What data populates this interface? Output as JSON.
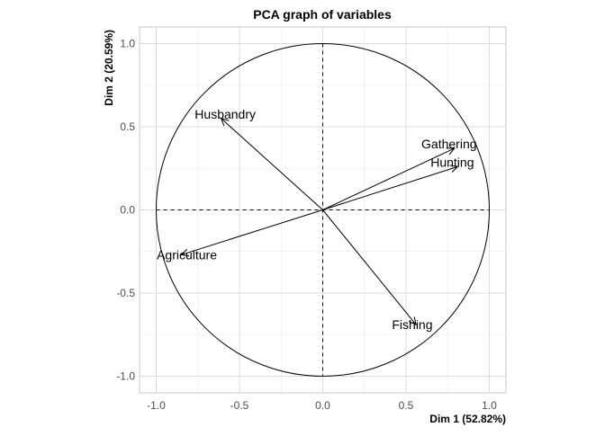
{
  "chart_data": {
    "type": "scatter",
    "title": "PCA graph of variables",
    "xlabel": "Dim 1 (52.82%)",
    "ylabel": "Dim 2 (20.59%)",
    "xlim": [
      -1.1,
      1.1
    ],
    "ylim": [
      -1.1,
      1.1
    ],
    "xticks": [
      -1.0,
      -0.5,
      0.0,
      0.5,
      1.0
    ],
    "yticks": [
      -1.0,
      -0.5,
      0.0,
      0.5,
      1.0
    ],
    "xtick_labels": [
      "-1.0",
      "-0.5",
      "0.0",
      "0.5",
      "1.0"
    ],
    "ytick_labels": [
      "-1.0",
      "-0.5",
      "0.0",
      "0.5",
      "1.0"
    ],
    "grid": true,
    "unit_circle": true,
    "variables": [
      {
        "name": "Husbandry",
        "x": -0.61,
        "y": 0.55
      },
      {
        "name": "Gathering",
        "x": 0.79,
        "y": 0.37
      },
      {
        "name": "Hunting",
        "x": 0.81,
        "y": 0.26
      },
      {
        "name": "Agriculture",
        "x": -0.85,
        "y": -0.27
      },
      {
        "name": "Fishing",
        "x": 0.56,
        "y": -0.69
      }
    ],
    "colors": {
      "arrows": "#000000",
      "grid": "#dcdcdc",
      "panel_border": "#c8c8c8"
    }
  }
}
